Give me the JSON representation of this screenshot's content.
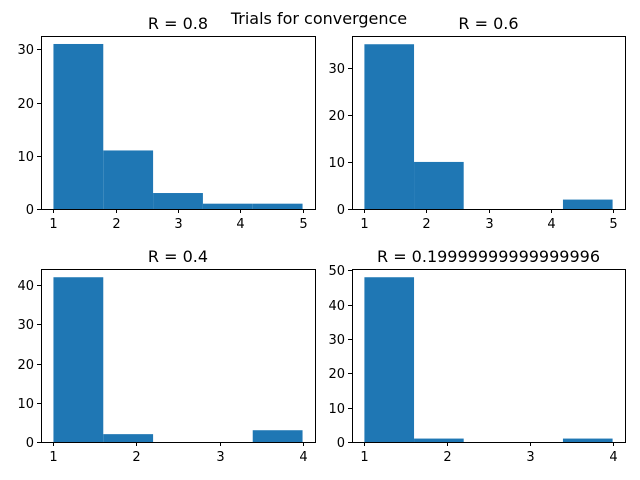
{
  "suptitle": "Trials for convergence",
  "chart_data": [
    {
      "type": "bar",
      "title": "R = 0.8",
      "xlim": [
        0.8,
        5.2
      ],
      "ylim": [
        0,
        32.5
      ],
      "xticks": [
        1,
        2,
        3,
        4,
        5
      ],
      "yticks": [
        0,
        10,
        20,
        30
      ],
      "bin_edges": [
        1.0,
        1.8,
        2.6,
        3.4,
        4.2,
        5.0
      ],
      "values": [
        31,
        11,
        3,
        1,
        1
      ],
      "color": "#1f77b4",
      "grid": false
    },
    {
      "type": "bar",
      "title": "R = 0.6",
      "xlim": [
        0.8,
        5.2
      ],
      "ylim": [
        0,
        36.75
      ],
      "xticks": [
        1,
        2,
        3,
        4,
        5
      ],
      "yticks": [
        0,
        10,
        20,
        30
      ],
      "bin_edges": [
        1.0,
        1.8,
        2.6,
        3.4,
        4.2,
        5.0
      ],
      "values": [
        35,
        10,
        0,
        0,
        2
      ],
      "color": "#1f77b4",
      "grid": false
    },
    {
      "type": "bar",
      "title": "R = 0.4",
      "xlim": [
        0.85,
        4.15
      ],
      "ylim": [
        0,
        44.1
      ],
      "xticks": [
        1,
        2,
        3,
        4
      ],
      "yticks": [
        0,
        10,
        20,
        30,
        40
      ],
      "bin_edges": [
        1.0,
        1.6,
        2.2,
        2.8,
        3.4,
        4.0
      ],
      "values": [
        42,
        2,
        0,
        0,
        3
      ],
      "color": "#1f77b4",
      "grid": false
    },
    {
      "type": "bar",
      "title": "R = 0.19999999999999996",
      "xlim": [
        0.85,
        4.15
      ],
      "ylim": [
        0,
        50.4
      ],
      "xticks": [
        1,
        2,
        3,
        4
      ],
      "yticks": [
        0,
        10,
        20,
        30,
        40,
        50
      ],
      "bin_edges": [
        1.0,
        1.6,
        2.2,
        2.8,
        3.4,
        4.0
      ],
      "values": [
        48,
        1,
        0,
        0,
        1
      ],
      "color": "#1f77b4",
      "grid": false
    }
  ]
}
